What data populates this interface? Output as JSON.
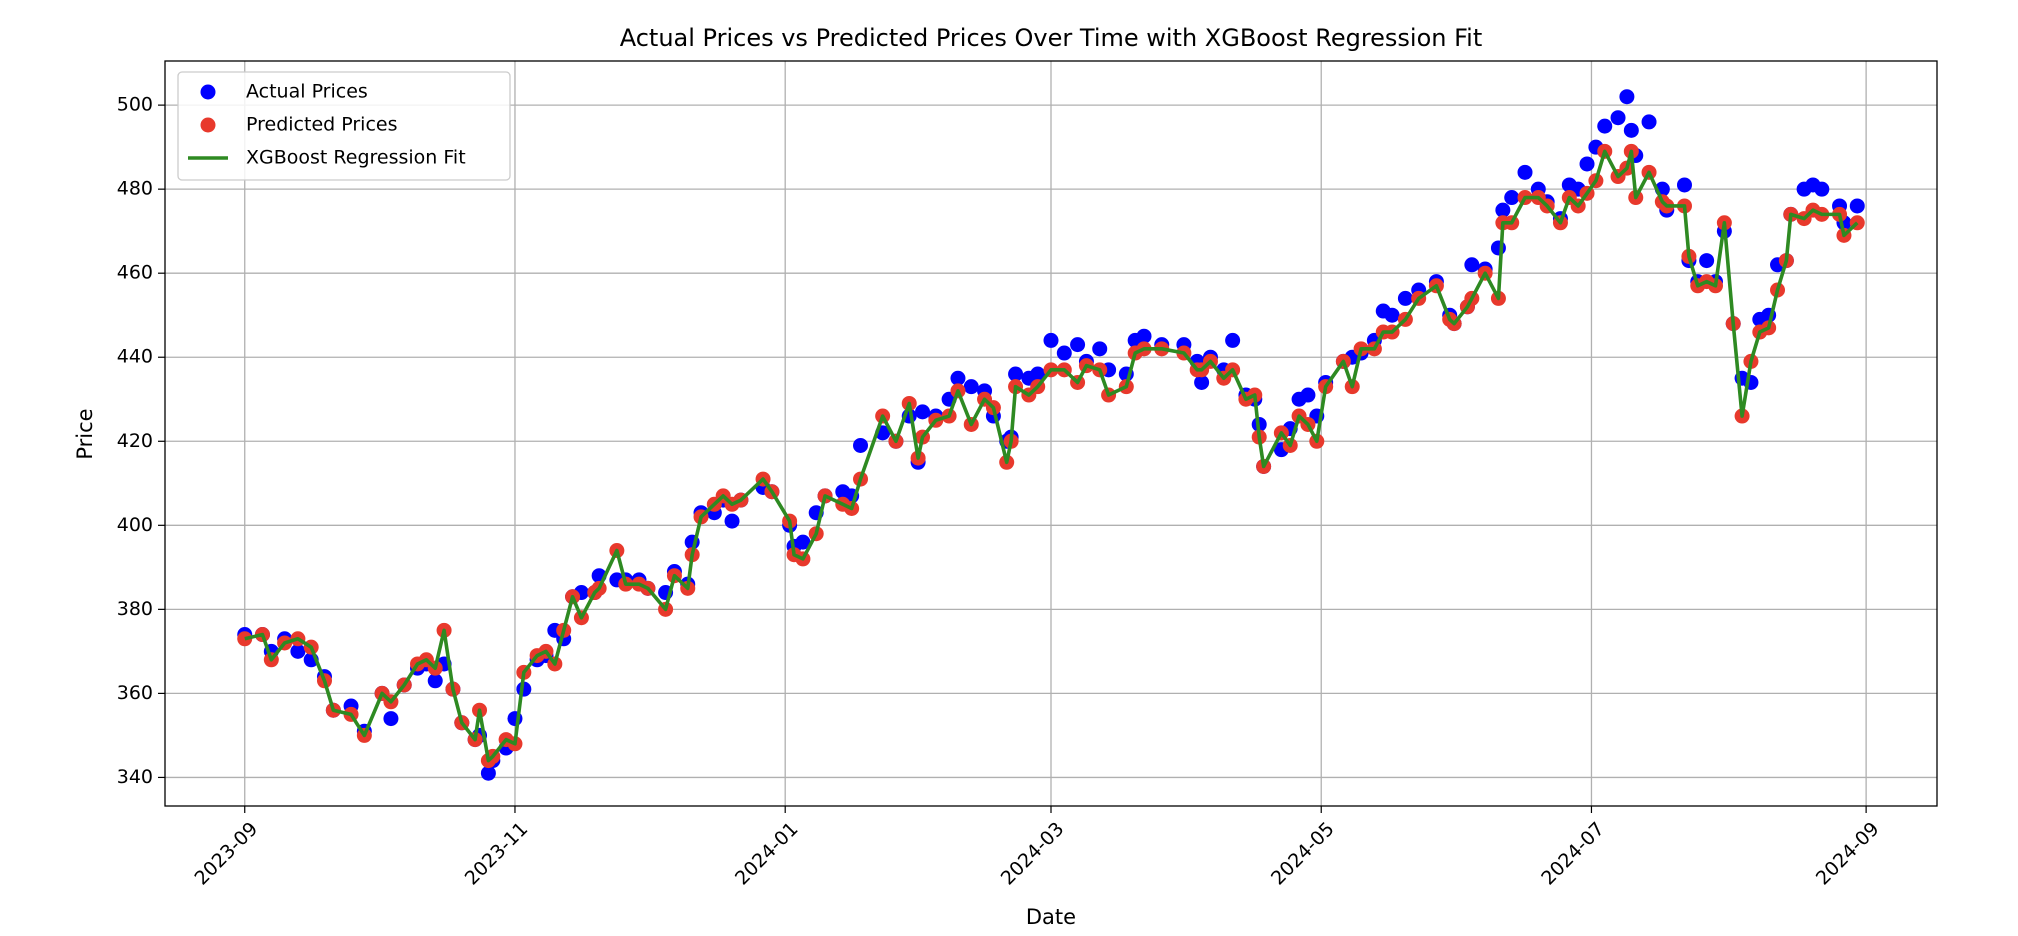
{
  "chart_data": {
    "type": "scatter",
    "title": "Actual Prices vs Predicted Prices Over Time with XGBoost Regression Fit",
    "x_label": "Date",
    "y_label": "Price",
    "xlim": [
      19583,
      19983
    ],
    "xticks": [
      {
        "value": 19601,
        "label": "2023-09"
      },
      {
        "value": 19662,
        "label": "2023-11"
      },
      {
        "value": 19723,
        "label": "2024-01"
      },
      {
        "value": 19783,
        "label": "2024-03"
      },
      {
        "value": 19844,
        "label": "2024-05"
      },
      {
        "value": 19905,
        "label": "2024-07"
      },
      {
        "value": 19967,
        "label": "2024-09"
      }
    ],
    "ylim": [
      333.2,
      510.5
    ],
    "yticks": [
      340,
      360,
      380,
      400,
      420,
      440,
      460,
      480,
      500
    ],
    "grid": true,
    "legend": "upper left",
    "x": [
      19601,
      19605,
      19607,
      19610,
      19613,
      19616,
      19619,
      19621,
      19625,
      19628,
      19632,
      19634,
      19637,
      19640,
      19642,
      19644,
      19646,
      19648,
      19650,
      19653,
      19654,
      19656,
      19657,
      19660,
      19662,
      19664,
      19667,
      19669,
      19671,
      19673,
      19675,
      19677,
      19680,
      19681,
      19685,
      19687,
      19690,
      19692,
      19696,
      19698,
      19701,
      19702,
      19704,
      19707,
      19709,
      19711,
      19713,
      19718,
      19720,
      19724,
      19725,
      19727,
      19730,
      19732,
      19736,
      19738,
      19740,
      19745,
      19748,
      19751,
      19753,
      19754,
      19757,
      19760,
      19762,
      19765,
      19768,
      19770,
      19773,
      19774,
      19775,
      19778,
      19780,
      19783,
      19786,
      19789,
      19791,
      19794,
      19796,
      19800,
      19802,
      19804,
      19808,
      19813,
      19816,
      19817,
      19819,
      19822,
      19824,
      19827,
      19829,
      19830,
      19831,
      19835,
      19837,
      19839,
      19841,
      19843,
      19845,
      19849,
      19851,
      19853,
      19856,
      19858,
      19860,
      19863,
      19866,
      19870,
      19873,
      19874,
      19877,
      19878,
      19881,
      19884,
      19885,
      19887,
      19890,
      19893,
      19895,
      19898,
      19900,
      19902,
      19904,
      19906,
      19908,
      19911,
      19913,
      19914,
      19915,
      19918,
      19921,
      19922,
      19926,
      19927,
      19929,
      19931,
      19933,
      19935,
      19937,
      19939,
      19941,
      19943,
      19945,
      19947,
      19949,
      19950,
      19953,
      19955,
      19957,
      19961,
      19962,
      19965
    ],
    "series": [
      {
        "name": "Actual Prices",
        "type": "scatter",
        "color": "#0000ff",
        "values": [
          374,
          374,
          370,
          373,
          370,
          368,
          364,
          356,
          357,
          351,
          360,
          354,
          362,
          366,
          367,
          363,
          367,
          361,
          353,
          349,
          350,
          341,
          344,
          347,
          354,
          361,
          368,
          369,
          375,
          373,
          383,
          384,
          384,
          388,
          387,
          387,
          387,
          385,
          384,
          389,
          386,
          396,
          403,
          403,
          406,
          401,
          406,
          409,
          408,
          400,
          395,
          396,
          403,
          407,
          408,
          407,
          419,
          422,
          420,
          426,
          415,
          427,
          426,
          430,
          435,
          433,
          432,
          426,
          420,
          421,
          436,
          435,
          436,
          444,
          441,
          443,
          439,
          442,
          437,
          436,
          444,
          445,
          443,
          443,
          439,
          434,
          440,
          437,
          444,
          431,
          430,
          424,
          414,
          418,
          423,
          430,
          431,
          426,
          434,
          439,
          440,
          441,
          444,
          451,
          450,
          454,
          456,
          458,
          450,
          448,
          452,
          462,
          461,
          466,
          475,
          478,
          484,
          480,
          477,
          473,
          481,
          480,
          486,
          490,
          495,
          497,
          502,
          494,
          488,
          496,
          480,
          475,
          481,
          463,
          458,
          463,
          458,
          470,
          448,
          435,
          434,
          449,
          450,
          462,
          463,
          474,
          480,
          481,
          480,
          476,
          472,
          476
        ]
      },
      {
        "name": "Predicted Prices",
        "type": "scatter",
        "color": "#e8392c",
        "values": [
          373,
          374,
          368,
          372,
          373,
          371,
          363,
          356,
          355,
          350,
          360,
          358,
          362,
          367,
          368,
          366,
          375,
          361,
          353,
          349,
          356,
          344,
          345,
          349,
          348,
          365,
          369,
          370,
          367,
          375,
          383,
          378,
          384,
          385,
          394,
          386,
          386,
          385,
          380,
          388,
          385,
          393,
          402,
          405,
          407,
          405,
          406,
          411,
          408,
          401,
          393,
          392,
          398,
          407,
          405,
          404,
          411,
          426,
          420,
          429,
          416,
          421,
          425,
          426,
          432,
          424,
          430,
          428,
          415,
          420,
          433,
          431,
          433,
          437,
          437,
          434,
          438,
          437,
          431,
          433,
          441,
          442,
          442,
          441,
          437,
          437,
          439,
          435,
          437,
          430,
          431,
          421,
          414,
          422,
          419,
          426,
          424,
          420,
          433,
          439,
          433,
          442,
          442,
          446,
          446,
          449,
          454,
          457,
          449,
          448,
          452,
          454,
          460,
          454,
          472,
          472,
          478,
          478,
          476,
          472,
          478,
          476,
          479,
          482,
          489,
          483,
          485,
          489,
          478,
          484,
          477,
          476,
          476,
          464,
          457,
          458,
          457,
          472,
          448,
          426,
          439,
          446,
          447,
          456,
          463,
          474,
          473,
          475,
          474,
          474,
          469,
          472
        ]
      },
      {
        "name": "XGBoost Regression Fit",
        "type": "line",
        "color": "#2e8a22",
        "values": [
          373,
          374,
          368,
          372,
          373,
          371,
          363,
          356,
          355,
          350,
          360,
          358,
          362,
          367,
          368,
          366,
          375,
          361,
          353,
          349,
          356,
          344,
          345,
          349,
          348,
          365,
          369,
          370,
          367,
          375,
          383,
          378,
          384,
          385,
          394,
          386,
          386,
          385,
          380,
          388,
          385,
          393,
          402,
          405,
          407,
          405,
          406,
          411,
          408,
          401,
          393,
          392,
          398,
          407,
          405,
          404,
          411,
          426,
          420,
          429,
          416,
          421,
          425,
          426,
          432,
          424,
          430,
          428,
          415,
          420,
          433,
          431,
          433,
          437,
          437,
          434,
          438,
          437,
          431,
          433,
          441,
          442,
          442,
          441,
          437,
          437,
          439,
          435,
          437,
          430,
          431,
          421,
          414,
          422,
          419,
          426,
          424,
          420,
          433,
          439,
          433,
          442,
          442,
          446,
          446,
          449,
          454,
          457,
          449,
          448,
          452,
          454,
          460,
          454,
          472,
          472,
          478,
          478,
          476,
          472,
          478,
          476,
          479,
          482,
          489,
          483,
          485,
          489,
          478,
          484,
          477,
          476,
          476,
          464,
          457,
          458,
          457,
          472,
          448,
          426,
          439,
          446,
          447,
          456,
          463,
          474,
          473,
          475,
          474,
          474,
          469,
          472
        ]
      }
    ]
  }
}
